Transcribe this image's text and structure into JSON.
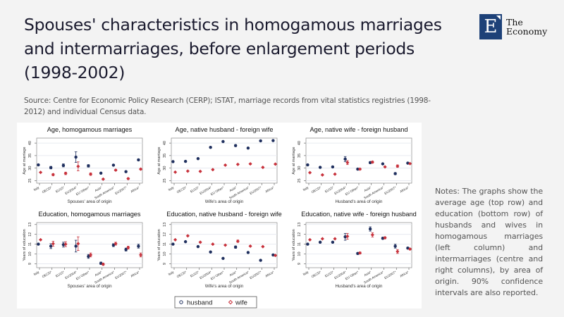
{
  "header": {
    "title": "Spouses' characteristics in homogamous marriages and intermarriages, before enlargement periods (1998-2002)",
    "source": "Source: Centre for Economic Policy Research (CERP); ISTAT, marriage records from vital statistics registries (1998-2012) and individual Census data."
  },
  "logo": {
    "letter": "E",
    "line1": "The",
    "line2": "Economy",
    "color": "#1d4178"
  },
  "notes": "Notes: The graphs show the average age (top row) and education (bottom row) of husbands and wives in homogamous marriages (left column) and intermarriages (centre and right columns), by area of origin. 90% confidence intervals are also reported.",
  "legend": {
    "items": [
      {
        "label": "husband",
        "color": "#1f2f5e",
        "marker": "circle"
      },
      {
        "label": "wife",
        "color": "#c8323c",
        "marker": "diamond"
      }
    ]
  },
  "colors": {
    "husband": "#1f2f5e",
    "wife": "#c8323c"
  },
  "chart_data": [
    {
      "type": "scatter",
      "title": "Age, homogamous marriages",
      "xlabel": "Spouses' area of origin",
      "ylabel": "Age at marriage",
      "ylim": [
        24,
        42
      ],
      "yticks": [
        25,
        30,
        35,
        40
      ],
      "grid": true,
      "categories": [
        "Italy",
        "OECD*",
        "EU15*",
        "EU2004*",
        "EU Other*",
        "Asia*",
        "South America*",
        "EU2007*",
        "Africa*"
      ],
      "series": [
        {
          "name": "husband",
          "values": [
            31.3,
            30.2,
            31.1,
            34.4,
            30.9,
            28.0,
            31.2,
            28.6,
            33.3
          ],
          "ci": [
            0.1,
            0.5,
            0.6,
            2.1,
            0.5,
            0.2,
            0.3,
            0.3,
            0.3
          ]
        },
        {
          "name": "wife",
          "values": [
            28.3,
            27.4,
            27.9,
            30.7,
            27.6,
            25.6,
            29.2,
            25.8,
            29.6
          ],
          "ci": [
            0.1,
            0.4,
            0.5,
            1.8,
            0.5,
            0.2,
            0.3,
            0.3,
            0.3
          ]
        }
      ]
    },
    {
      "type": "scatter",
      "title": "Age, native husband - foreign wife",
      "xlabel": "Wife's area of origin",
      "ylabel": "Age at marriage",
      "ylim": [
        24,
        42
      ],
      "yticks": [
        25,
        30,
        35,
        40
      ],
      "grid": true,
      "categories": [
        "Italy",
        "OECD*",
        "EU15*",
        "EU2004*",
        "EU Other*",
        "Asia*",
        "South America*",
        "EU2007*",
        "Africa*"
      ],
      "series": [
        {
          "name": "husband",
          "values": [
            32.6,
            32.7,
            33.8,
            38.3,
            40.6,
            39.0,
            38.0,
            40.9,
            41.0
          ],
          "ci": [
            0.1,
            0.2,
            0.2,
            0.2,
            0.2,
            0.4,
            0.2,
            0.2,
            0.2
          ]
        },
        {
          "name": "wife",
          "values": [
            28.4,
            28.8,
            28.7,
            29.4,
            31.2,
            31.5,
            31.7,
            30.3,
            31.6
          ],
          "ci": [
            0.1,
            0.2,
            0.2,
            0.2,
            0.2,
            0.2,
            0.2,
            0.2,
            0.2
          ]
        }
      ]
    },
    {
      "type": "scatter",
      "title": "Age, native wife - foreign husband",
      "xlabel": "Husband's area of origin",
      "ylabel": "Age at marriage",
      "ylim": [
        24,
        42
      ],
      "yticks": [
        25,
        30,
        35,
        40
      ],
      "grid": true,
      "categories": [
        "Italy",
        "OECD*",
        "EU15*",
        "EU2004*",
        "EU Other*",
        "Asia*",
        "South America*",
        "EU2007*",
        "Africa*"
      ],
      "series": [
        {
          "name": "husband",
          "values": [
            31.3,
            30.3,
            30.5,
            33.6,
            29.6,
            32.2,
            31.7,
            27.8,
            32.0
          ],
          "ci": [
            0.1,
            0.2,
            0.2,
            1.0,
            0.3,
            0.4,
            0.2,
            0.4,
            0.2
          ]
        },
        {
          "name": "wife",
          "values": [
            28.2,
            27.3,
            27.6,
            32.2,
            29.6,
            32.4,
            30.5,
            30.8,
            31.8
          ],
          "ci": [
            0.1,
            0.2,
            0.2,
            0.8,
            0.3,
            0.4,
            0.2,
            0.5,
            0.2
          ]
        }
      ]
    },
    {
      "type": "scatter",
      "title": "Education, homogamous marriages",
      "xlabel": "Spouses' area of origin",
      "ylabel": "Years of education",
      "ylim": [
        8.6,
        13.2
      ],
      "yticks": [
        9,
        10,
        11,
        12,
        13
      ],
      "grid": true,
      "categories": [
        "Italy",
        "OECD*",
        "EU15*",
        "EU2004*",
        "EU Other*",
        "Asia*",
        "South America*",
        "EU2007*",
        "Africa*"
      ],
      "series": [
        {
          "name": "husband",
          "values": [
            11.0,
            10.8,
            10.95,
            10.8,
            9.75,
            9.05,
            10.9,
            10.45,
            10.8
          ],
          "ci": [
            0.02,
            0.25,
            0.25,
            0.6,
            0.2,
            0.12,
            0.15,
            0.15,
            0.2
          ]
        },
        {
          "name": "wife",
          "values": [
            11.45,
            11.05,
            11.0,
            11.05,
            9.9,
            8.95,
            11.05,
            10.65,
            9.9
          ],
          "ci": [
            0.02,
            0.25,
            0.25,
            0.7,
            0.2,
            0.12,
            0.15,
            0.15,
            0.2
          ]
        }
      ]
    },
    {
      "type": "scatter",
      "title": "Education, native husband - foreign wife",
      "xlabel": "Wife's area of origin",
      "ylabel": "Years of education",
      "ylim": [
        8.6,
        13.2
      ],
      "yticks": [
        9,
        10,
        11,
        12,
        13
      ],
      "grid": true,
      "categories": [
        "Italy",
        "OECD*",
        "EU15*",
        "EU2004*",
        "EU Other*",
        "Asia*",
        "South America*",
        "EU2007*",
        "Africa*"
      ],
      "series": [
        {
          "name": "husband",
          "values": [
            11.0,
            11.25,
            10.75,
            10.2,
            9.55,
            10.7,
            10.15,
            9.35,
            9.9
          ],
          "ci": [
            0.02,
            0.04,
            0.04,
            0.05,
            0.04,
            0.12,
            0.04,
            0.05,
            0.06
          ]
        },
        {
          "name": "wife",
          "values": [
            11.45,
            11.85,
            11.2,
            11.0,
            10.9,
            11.3,
            10.8,
            10.75,
            9.85
          ],
          "ci": [
            0.02,
            0.04,
            0.04,
            0.05,
            0.04,
            0.12,
            0.04,
            0.05,
            0.06
          ]
        }
      ]
    },
    {
      "type": "scatter",
      "title": "Education, native wife - foreign husband",
      "xlabel": "Husband's area of origin",
      "ylabel": "Years of education",
      "ylim": [
        8.6,
        13.2
      ],
      "yticks": [
        9,
        10,
        11,
        12,
        13
      ],
      "grid": true,
      "categories": [
        "Italy",
        "OECD*",
        "EU15*",
        "EU2004*",
        "EU Other*",
        "Asia*",
        "South America*",
        "EU2007*",
        "Africa*"
      ],
      "series": [
        {
          "name": "husband",
          "values": [
            11.0,
            11.2,
            11.2,
            11.75,
            10.05,
            12.55,
            11.6,
            10.8,
            10.6
          ],
          "ci": [
            0.02,
            0.04,
            0.04,
            0.35,
            0.1,
            0.22,
            0.1,
            0.2,
            0.08
          ]
        },
        {
          "name": "wife",
          "values": [
            11.45,
            11.55,
            11.55,
            11.8,
            10.1,
            11.95,
            11.65,
            10.25,
            10.5
          ],
          "ci": [
            0.02,
            0.04,
            0.04,
            0.3,
            0.1,
            0.22,
            0.1,
            0.2,
            0.08
          ]
        }
      ]
    }
  ]
}
